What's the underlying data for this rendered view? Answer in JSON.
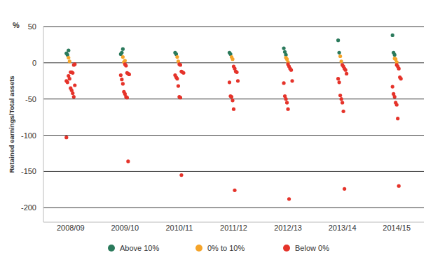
{
  "chart_data": {
    "type": "scatter",
    "y_label": "Retained earnings/Total assets",
    "annotations": [
      "%"
    ],
    "categories": [
      "2008/09",
      "2009/10",
      "2010/11",
      "2011/12",
      "2012/13",
      "2013/14",
      "2014/15"
    ],
    "series": [
      {
        "name": "Above 10%",
        "color": "#2b7a5c",
        "values": [
          [
            13,
            11,
            17
          ],
          [
            12,
            14,
            19
          ],
          [
            14,
            12
          ],
          [
            14,
            12
          ],
          [
            20,
            15,
            11
          ],
          [
            31,
            14
          ],
          [
            38,
            14,
            11
          ]
        ]
      },
      {
        "name": "0% to 10%",
        "color": "#f5a42a",
        "values": [
          [
            7,
            2
          ],
          [
            8,
            1,
            3
          ],
          [
            8,
            2
          ],
          [
            8,
            5
          ],
          [
            7,
            5,
            1
          ],
          [
            9,
            2
          ],
          [
            6,
            5,
            1
          ]
        ]
      },
      {
        "name": "Below 0%",
        "color": "#e5332a",
        "values": [
          [
            -13,
            -13,
            -14,
            -3,
            -2,
            -25,
            -27,
            -18,
            -22,
            -35,
            -38,
            -42,
            -47,
            -31,
            -103
          ],
          [
            -2,
            -4,
            -14,
            -15,
            -16,
            -17,
            -23,
            -29,
            -40,
            -43,
            -47,
            -48,
            -136
          ],
          [
            -2,
            -3,
            -12,
            -13,
            -14,
            -17,
            -20,
            -22,
            -32,
            -47,
            -48,
            -155
          ],
          [
            -5,
            -8,
            -12,
            -13,
            -25,
            -27,
            -46,
            -47,
            -52,
            -64,
            -176
          ],
          [
            -2,
            -5,
            -8,
            -10,
            -25,
            -28,
            -46,
            -50,
            -55,
            -64,
            -188
          ],
          [
            -3,
            -5,
            -8,
            -10,
            -15,
            -22,
            -27,
            -45,
            -50,
            -55,
            -67,
            -174
          ],
          [
            -3,
            -5,
            -8,
            -20,
            -22,
            -33,
            -43,
            -47,
            -55,
            -58,
            -77,
            -170
          ]
        ]
      }
    ],
    "ylim": [
      -220,
      50
    ],
    "yticks": [
      50,
      0,
      -50,
      -100,
      -150,
      -200
    ],
    "grid": true,
    "legend": "bottom",
    "marker": "circle"
  }
}
